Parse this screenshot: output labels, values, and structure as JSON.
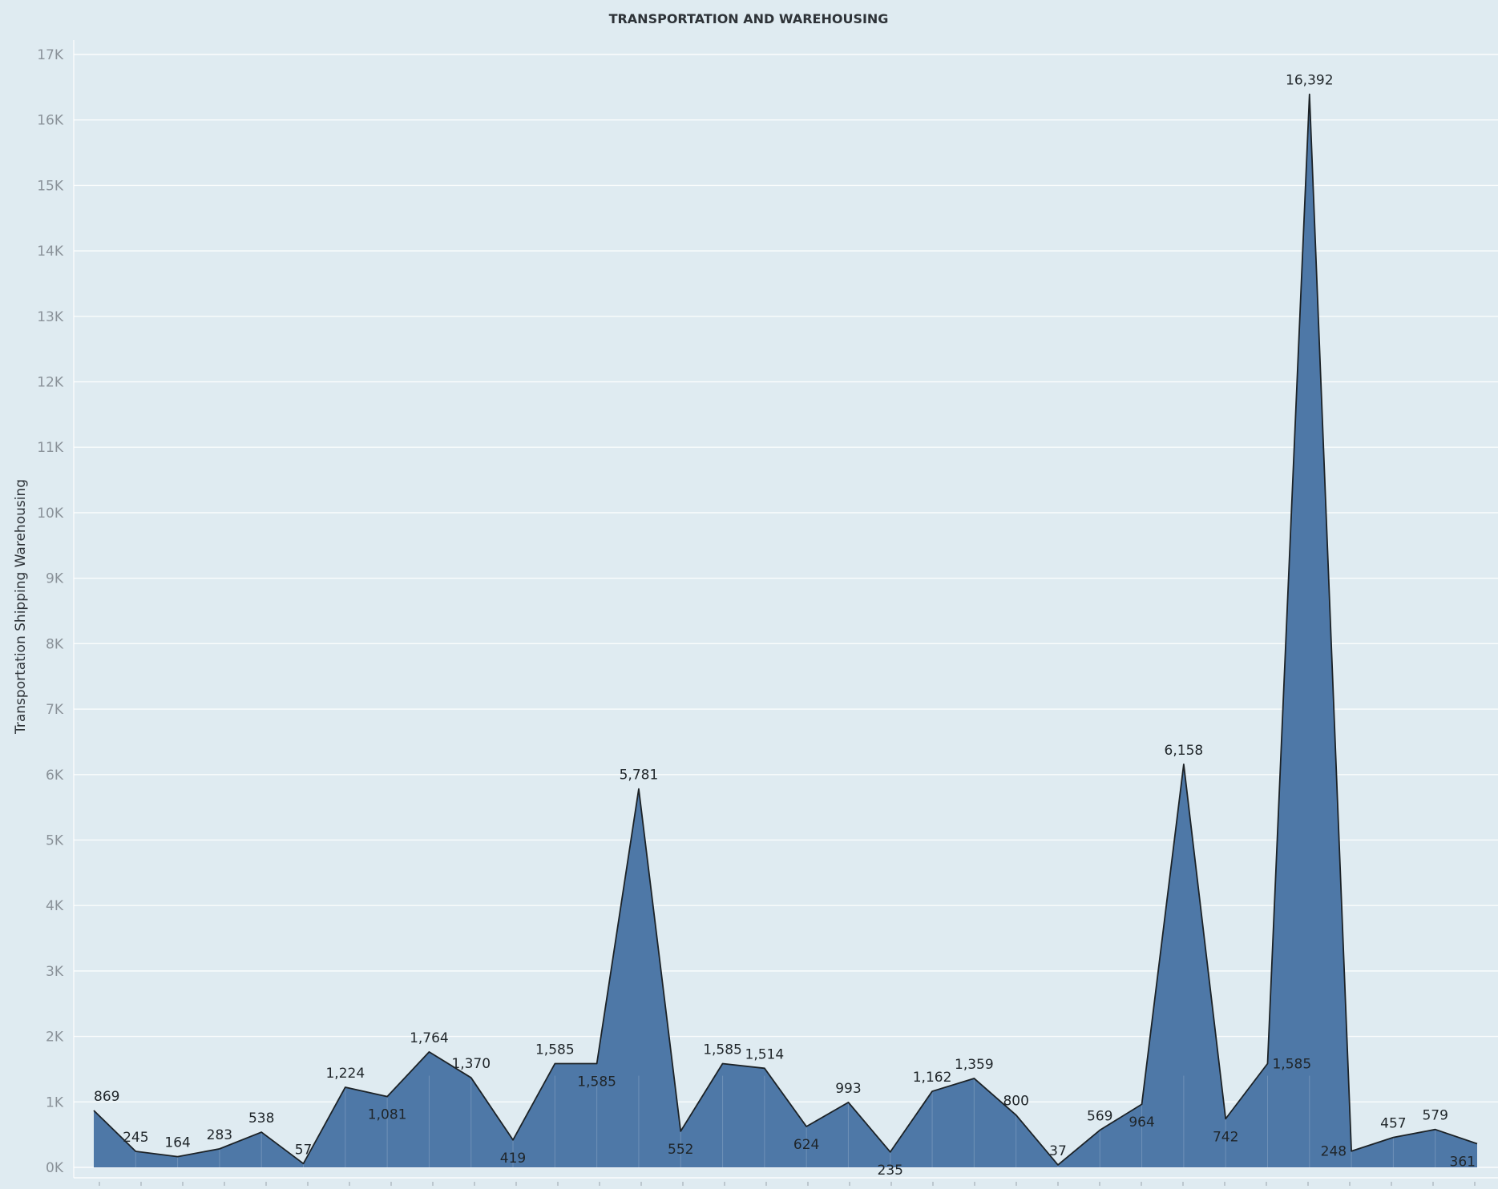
{
  "chart_data": {
    "type": "area",
    "title": "TRANSPORTATION AND WAREHOUSING",
    "xlabel": "",
    "ylabel": "Transportation Shipping Warehousing",
    "ylim": [
      0,
      17000
    ],
    "yticks": [
      {
        "value": 0,
        "label": "0K"
      },
      {
        "value": 1000,
        "label": "1K"
      },
      {
        "value": 2000,
        "label": "2K"
      },
      {
        "value": 3000,
        "label": "3K"
      },
      {
        "value": 4000,
        "label": "4K"
      },
      {
        "value": 5000,
        "label": "5K"
      },
      {
        "value": 6000,
        "label": "6K"
      },
      {
        "value": 7000,
        "label": "7K"
      },
      {
        "value": 8000,
        "label": "8K"
      },
      {
        "value": 9000,
        "label": "9K"
      },
      {
        "value": 10000,
        "label": "10K"
      },
      {
        "value": 11000,
        "label": "11K"
      },
      {
        "value": 12000,
        "label": "12K"
      },
      {
        "value": 13000,
        "label": "13K"
      },
      {
        "value": 14000,
        "label": "14K"
      },
      {
        "value": 15000,
        "label": "15K"
      },
      {
        "value": 16000,
        "label": "16K"
      },
      {
        "value": 17000,
        "label": "17K"
      }
    ],
    "grid": true,
    "series": [
      {
        "name": "Transportation Shipping Warehousing",
        "color": "#4e78a7",
        "points": [
          {
            "value": 869,
            "label": "869",
            "pos": "above"
          },
          {
            "value": 245,
            "label": "245",
            "pos": "above"
          },
          {
            "value": 164,
            "label": "164",
            "pos": "above"
          },
          {
            "value": 283,
            "label": "283",
            "pos": "above"
          },
          {
            "value": 538,
            "label": "538",
            "pos": "above"
          },
          {
            "value": 57,
            "label": "57",
            "pos": "above"
          },
          {
            "value": 1224,
            "label": "1,224",
            "pos": "above"
          },
          {
            "value": 1081,
            "label": "1,081",
            "pos": "below"
          },
          {
            "value": 1764,
            "label": "1,764",
            "pos": "above"
          },
          {
            "value": 1370,
            "label": "1,370",
            "pos": "above"
          },
          {
            "value": 419,
            "label": "419",
            "pos": "below"
          },
          {
            "value": 1585,
            "label": "1,585",
            "pos": "above"
          },
          {
            "value": 1585,
            "label": "1,585",
            "pos": "below"
          },
          {
            "value": 5781,
            "label": "5,781",
            "pos": "above"
          },
          {
            "value": 552,
            "label": "552",
            "pos": "below"
          },
          {
            "value": 1585,
            "label": "1,585",
            "pos": "above"
          },
          {
            "value": 1514,
            "label": "1,514",
            "pos": "above"
          },
          {
            "value": 624,
            "label": "624",
            "pos": "below"
          },
          {
            "value": 993,
            "label": "993",
            "pos": "above"
          },
          {
            "value": 235,
            "label": "235",
            "pos": "below"
          },
          {
            "value": 1162,
            "label": "1,162",
            "pos": "above"
          },
          {
            "value": 1359,
            "label": "1,359",
            "pos": "above"
          },
          {
            "value": 800,
            "label": "800",
            "pos": "above"
          },
          {
            "value": 37,
            "label": "37",
            "pos": "above"
          },
          {
            "value": 569,
            "label": "569",
            "pos": "above"
          },
          {
            "value": 964,
            "label": "964",
            "pos": "below"
          },
          {
            "value": 6158,
            "label": "6,158",
            "pos": "above"
          },
          {
            "value": 742,
            "label": "742",
            "pos": "below"
          },
          {
            "value": 1585,
            "label": "1,585",
            "pos": "right"
          },
          {
            "value": 16392,
            "label": "16,392",
            "pos": "above"
          },
          {
            "value": 248,
            "label": "248",
            "pos": "left"
          },
          {
            "value": 457,
            "label": "457",
            "pos": "above"
          },
          {
            "value": 579,
            "label": "579",
            "pos": "above"
          },
          {
            "value": 361,
            "label": "361",
            "pos": "below"
          }
        ]
      }
    ]
  }
}
